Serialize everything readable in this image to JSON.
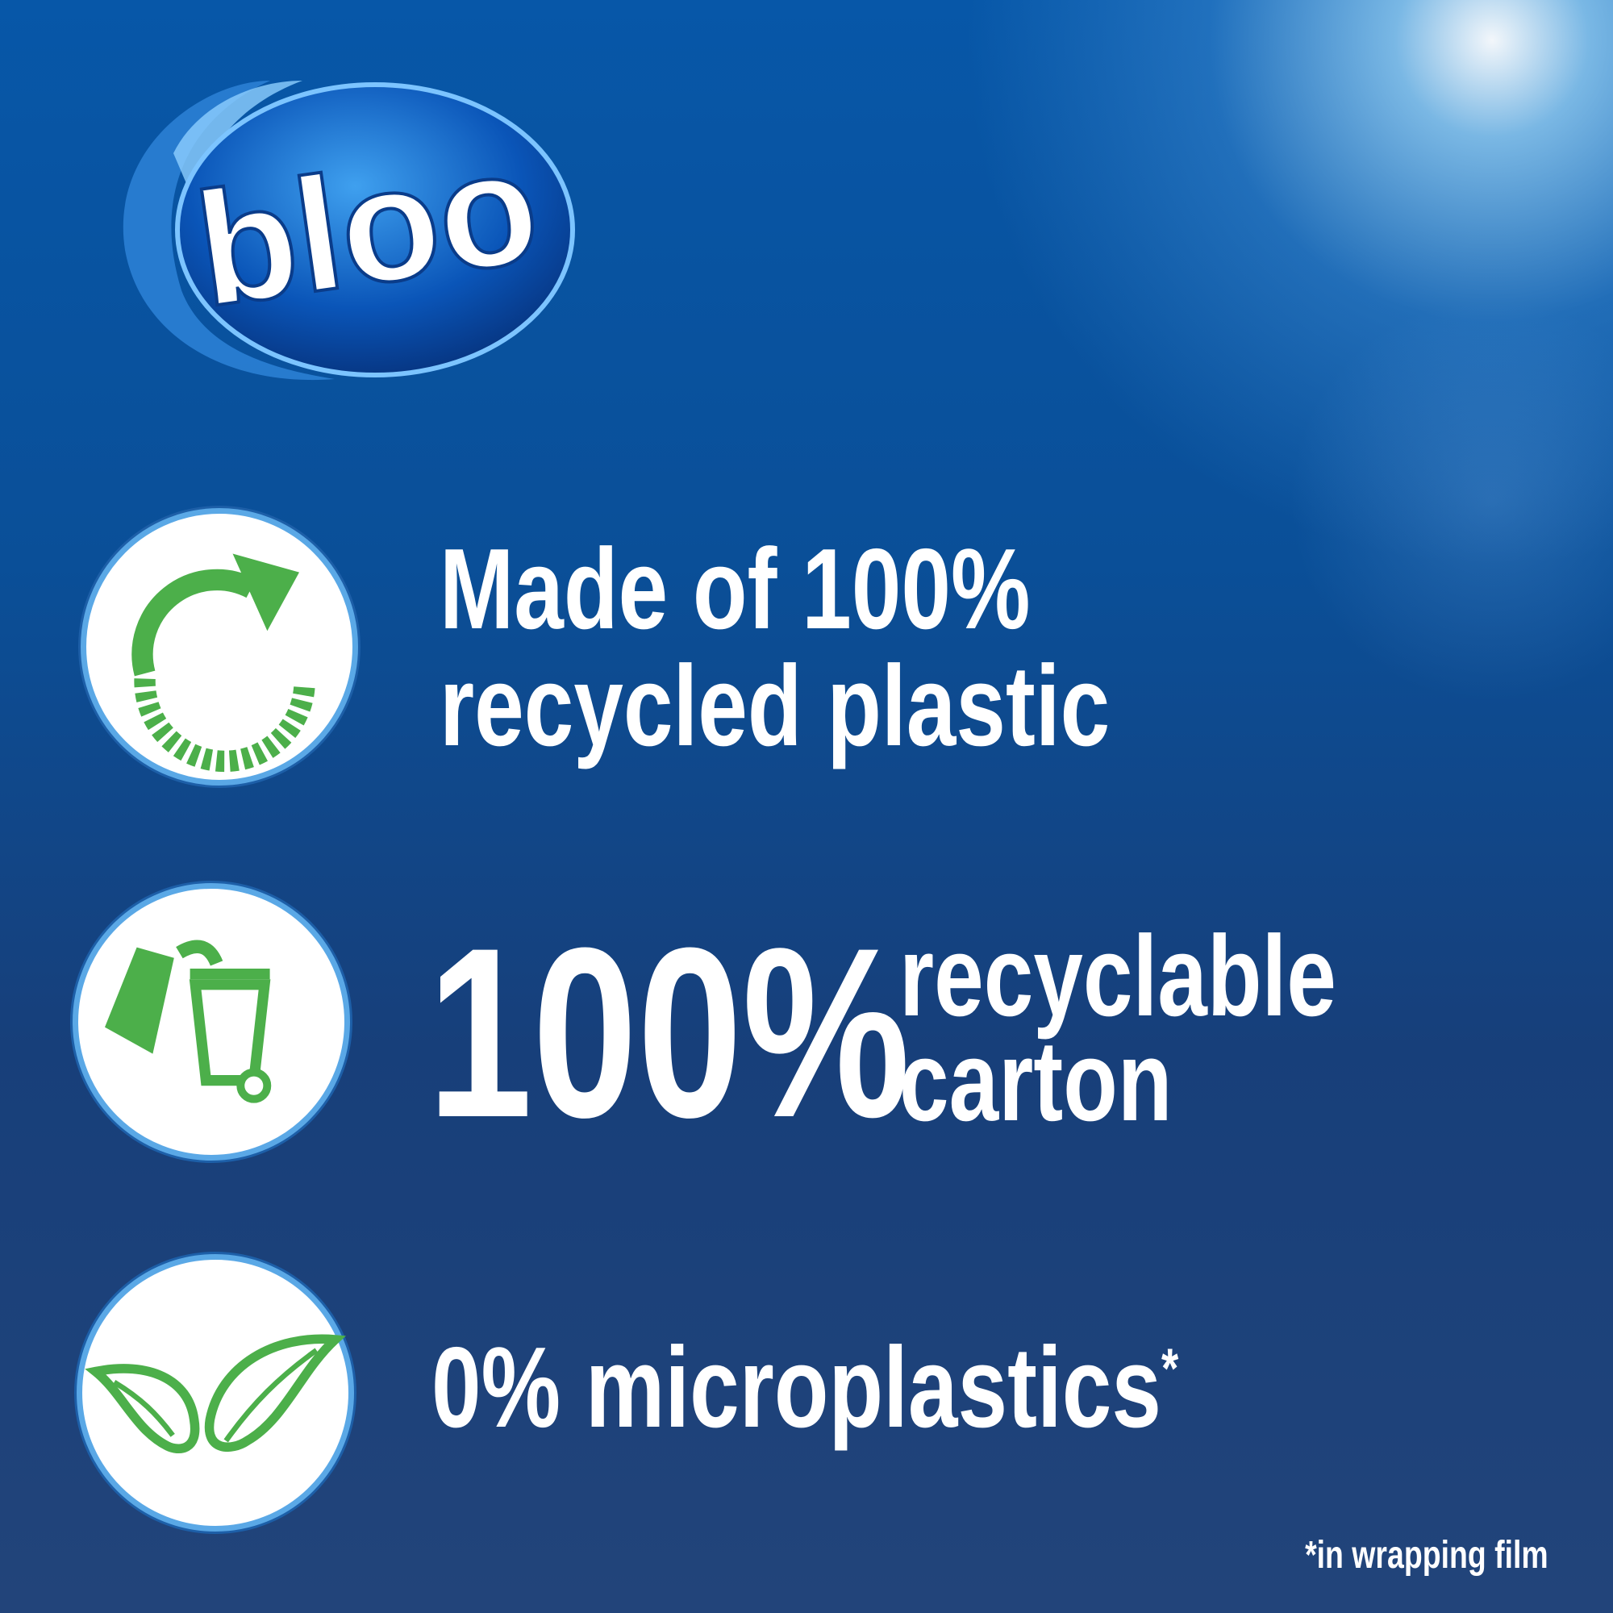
{
  "brand": {
    "logo_text": "bloo"
  },
  "features": [
    {
      "icon": "recycle-icon",
      "line1": "Made of 100%",
      "line2": "recycled plastic"
    },
    {
      "icon": "recycle-bin-icon",
      "big": "100%",
      "line1": "recyclable",
      "line2": "carton"
    },
    {
      "icon": "leaves-icon",
      "line1": "0% microplastics",
      "sup": "*"
    }
  ],
  "footnote": "*in wrapping film",
  "colors": {
    "background": "#0a4f98",
    "accent_green": "#4caf4a",
    "text": "#ffffff"
  }
}
